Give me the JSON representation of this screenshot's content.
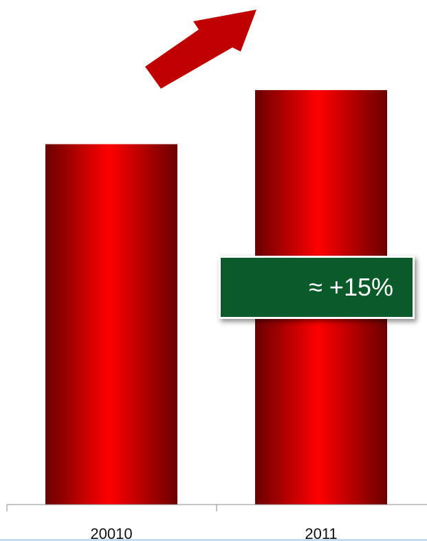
{
  "chart_data": {
    "type": "bar",
    "categories": [
      "20010",
      "2011"
    ],
    "values": [
      100,
      115
    ],
    "ylim": [
      0,
      140
    ],
    "grid": false,
    "annotations": [
      {
        "text": "≈ +15%",
        "target": "2011"
      }
    ]
  },
  "callout": {
    "text": "≈ +15%"
  },
  "colors": {
    "bar_center": "#ff0000",
    "bar_edge": "#6a0000",
    "arrow": "#c00000",
    "callout_bg": "#0b5a2a",
    "axis": "#888888",
    "bottom_line": "#c8dcef"
  },
  "icons": {
    "trend": "up-right-arrow-icon"
  }
}
